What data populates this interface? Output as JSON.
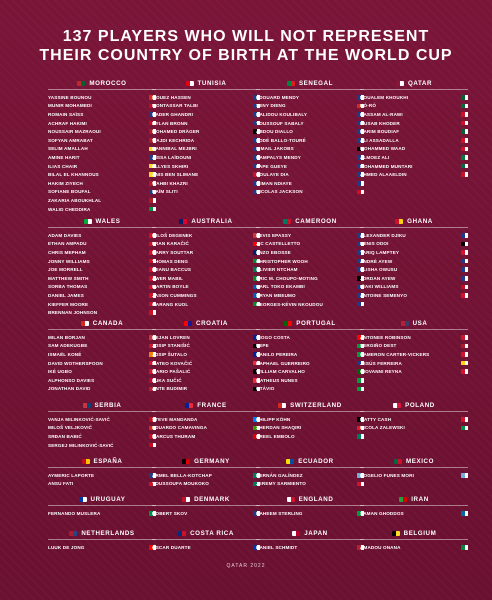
{
  "title_line1": "137 PLAYERS WHO WILL NOT REPRESENT",
  "title_line2": "THEIR COUNTRY OF BIRTH AT THE WORLD CUP",
  "footer": "QATAR 2022",
  "groups": [
    {
      "name": "MOROCCO",
      "flag": [
        "#c1272d",
        "#006233"
      ],
      "players": [
        [
          "YASSINE BOUNOU",
          "#d52b1e"
        ],
        [
          "MUNIR MOHAMEDI",
          "#c60b1e"
        ],
        [
          "ROMAIN SAÏSS",
          "#1e3a8a"
        ],
        [
          "ACHRAF HAKIMI",
          "#c60b1e"
        ],
        [
          "NOUSSAIR MAZRAOUI",
          "#ae1c28"
        ],
        [
          "SOFYAN AMRABAT",
          "#ae1c28"
        ],
        [
          "SELIM AMALLAH",
          "#fdda24"
        ],
        [
          "AMINE HARIT",
          "#1e3a8a"
        ],
        [
          "ILIAS CHAIR",
          "#fdda24"
        ],
        [
          "BILAL EL KHANNOUS",
          "#fdda24"
        ],
        [
          "HAKIM ZIYECH",
          "#ae1c28"
        ],
        [
          "SOFIANE BOUFAL",
          "#1e3a8a"
        ],
        [
          "ZAKARIA ABOUKHLAL",
          "#ae1c28"
        ],
        [
          "WALID CHEDDIRA",
          "#009246"
        ]
      ]
    },
    {
      "name": "TUNISIA",
      "flag": [
        "#e70013",
        "#ffffff"
      ],
      "players": [
        [
          "MOUEZ HASSEN",
          "#1e3a8a"
        ],
        [
          "MONTASSAR TALBI",
          "#1e3a8a"
        ],
        [
          "NADER GHANDRI",
          "#1e3a8a"
        ],
        [
          "DYLAN BRONN",
          "#1e3a8a"
        ],
        [
          "MOHAMED DRÄGER",
          "#000000"
        ],
        [
          "WAJDI KECHRIDA",
          "#1e3a8a"
        ],
        [
          "HANNIBAL MEJBRI",
          "#1e3a8a"
        ],
        [
          "AÏSSA LAÏDOUNI",
          "#1e3a8a"
        ],
        [
          "ELLYES SKHIRI",
          "#1e3a8a"
        ],
        [
          "ANIS BEN SLIMANE",
          "#c8102e"
        ],
        [
          "WAHBI KHAZRI",
          "#1e3a8a"
        ],
        [
          "NAÏM SLITI",
          "#1e3a8a"
        ]
      ]
    },
    {
      "name": "SENEGAL",
      "flag": [
        "#00853f",
        "#e31b23"
      ],
      "players": [
        [
          "ÉDOUARD MENDY",
          "#1e3a8a"
        ],
        [
          "SENY DIENG",
          "#d52b1e"
        ],
        [
          "KALIDOU KOULIBALY",
          "#1e3a8a"
        ],
        [
          "YOUSSOUF SABALY",
          "#1e3a8a"
        ],
        [
          "ABDOU DIALLO",
          "#1e3a8a"
        ],
        [
          "FODÉ BALLO-TOURÉ",
          "#1e3a8a"
        ],
        [
          "ISMAIL JAKOBS",
          "#000000"
        ],
        [
          "NAMPALYS MENDY",
          "#1e3a8a"
        ],
        [
          "PAPE GUEYE",
          "#1e3a8a"
        ],
        [
          "BOULAYE DIA",
          "#1e3a8a"
        ],
        [
          "ILIMAN NDIAYE",
          "#1e3a8a"
        ],
        [
          "NICOLAS JACKSON",
          "#ce1126"
        ]
      ]
    },
    {
      "name": "QATAR",
      "flag": [
        "#8a1538",
        "#ffffff"
      ],
      "players": [
        [
          "BOUALEM KHOUKHI",
          "#006233"
        ],
        [
          "RÓ-RÓ",
          "#046a38"
        ],
        [
          "BASSAM AL-RAWI",
          "#ce1126"
        ],
        [
          "MUSAB KHODER",
          "#ce1126"
        ],
        [
          "KARIM BOUDIAF",
          "#006233"
        ],
        [
          "ALI ASSADALLA",
          "#ce1126"
        ],
        [
          "MOHAMMED WAAD",
          "#ce1126"
        ],
        [
          "ALMOEZ ALI",
          "#007a3d"
        ],
        [
          "MOHAMMED MUNTARI",
          "#006b3f"
        ],
        [
          "AHMED ALAAELDIN",
          "#ce1126"
        ]
      ]
    },
    {
      "name": "WALES",
      "flag": [
        "#00ab39",
        "#ffffff"
      ],
      "players": [
        [
          "ADAM DAVIES",
          "#ce1124"
        ],
        [
          "ETHAN AMPADU",
          "#ce1124"
        ],
        [
          "CHRIS MEPHAM",
          "#ce1124"
        ],
        [
          "JONNY WILLIAMS",
          "#ce1124"
        ],
        [
          "JOE MORRELL",
          "#ce1124"
        ],
        [
          "MATTHEW SMITH",
          "#ce1124"
        ],
        [
          "SORBA THOMAS",
          "#ce1124"
        ],
        [
          "DANIEL JAMES",
          "#ce1124"
        ],
        [
          "KIEFFER MOORE",
          "#ce1124"
        ],
        [
          "BRENNAN JOHNSON",
          "#ce1124"
        ]
      ]
    },
    {
      "name": "AUSTRALIA",
      "flag": [
        "#012169",
        "#e4002b"
      ],
      "players": [
        [
          "MILOŠ DEGENEK",
          "#c6363c"
        ],
        [
          "FRAN KARAČIĆ",
          "#ff0000"
        ],
        [
          "HARRY SOUTTAR",
          "#012169"
        ],
        [
          "THOMAS DENG",
          "#078930"
        ],
        [
          "KEANU BACCUS",
          "#007a4d"
        ],
        [
          "AWER MABIL",
          "#078930"
        ],
        [
          "MARTIN BOYLE",
          "#005eb8"
        ],
        [
          "JASON CUMMINGS",
          "#005eb8"
        ],
        [
          "GARANG KUOL",
          "#078930"
        ]
      ]
    },
    {
      "name": "CAMEROON",
      "flag": [
        "#007a5e",
        "#ce1126"
      ],
      "players": [
        [
          "DEVIS EPASSY",
          "#1e3a8a"
        ],
        [
          "J-C CASTELLETTO",
          "#1e3a8a"
        ],
        [
          "ENZO EBOSSE",
          "#1e3a8a"
        ],
        [
          "CHRISTOPHER WOOH",
          "#1e3a8a"
        ],
        [
          "OLIVIER NTCHAM",
          "#1e3a8a"
        ],
        [
          "ERIC M. CHOUPO-MOTING",
          "#000000"
        ],
        [
          "KARL TOKO EKAMBI",
          "#1e3a8a"
        ],
        [
          "BRYAN MBEUMO",
          "#1e3a8a"
        ],
        [
          "GEORGES-KÉVIN NKOUDOU",
          "#1e3a8a"
        ]
      ]
    },
    {
      "name": "GHANA",
      "flag": [
        "#ce1126",
        "#fcd116"
      ],
      "players": [
        [
          "ALEXANDER DJIKU",
          "#1e3a8a"
        ],
        [
          "DENIS ODOI",
          "#000000"
        ],
        [
          "TARIQ LAMPTEY",
          "#cf142b"
        ],
        [
          "ANDRÉ AYEW",
          "#1e3a8a"
        ],
        [
          "ELISHA OWUSU",
          "#1e3a8a"
        ],
        [
          "JORDAN AYEW",
          "#1e3a8a"
        ],
        [
          "IÑAKI WILLIAMS",
          "#c60b1e"
        ],
        [
          "ANTOINE SEMENYO",
          "#cf142b"
        ]
      ]
    },
    {
      "name": "CANADA",
      "flag": [
        "#d52b1e",
        "#ffffff"
      ],
      "players": [
        [
          "MILAN BORJAN",
          "#c6363c"
        ],
        [
          "SAM ADEKUGBE",
          "#cf142b"
        ],
        [
          "ISMAËL KONÉ",
          "#f77f00"
        ],
        [
          "DAVID WOTHERSPOON",
          "#cf142b"
        ],
        [
          "IKÉ UGBO",
          "#cf142b"
        ],
        [
          "ALPHONSO DAVIES",
          "#bf0a30"
        ],
        [
          "JONATHAN DAVID",
          "#b22234"
        ]
      ]
    },
    {
      "name": "CROATIA",
      "flag": [
        "#ff0000",
        "#171796"
      ],
      "players": [
        [
          "DEJAN LOVREN",
          "#002395"
        ],
        [
          "JOSIP STANIŠIĆ",
          "#000000"
        ],
        [
          "JOSIP ŠUTALO",
          "#002395"
        ],
        [
          "MATEO KOVAČIĆ",
          "#ed2939"
        ],
        [
          "MARIO PAŠALIĆ",
          "#000000"
        ],
        [
          "LUKA SUČIĆ",
          "#ed2939"
        ],
        [
          "ANTE BUDIMIR",
          "#000000"
        ]
      ]
    },
    {
      "name": "PORTUGAL",
      "flag": [
        "#006600",
        "#ff0000"
      ],
      "players": [
        [
          "DIOGO COSTA",
          "#ff0000"
        ],
        [
          "PEPE",
          "#009c3b"
        ],
        [
          "DANILO PEREIRA",
          "#009c3b"
        ],
        [
          "RAPHAEL GUERREIRO",
          "#1e3a8a"
        ],
        [
          "WILLIAM CARVALHO",
          "#006600"
        ],
        [
          "MATHEUS NUNES",
          "#009c3b"
        ],
        [
          "OTÁVIO",
          "#009c3b"
        ]
      ]
    },
    {
      "name": "USA",
      "flag": [
        "#b22234",
        "#3c3b6e"
      ],
      "players": [
        [
          "ANTONEE ROBINSON",
          "#cf142b"
        ],
        [
          "SERGIÑO DEST",
          "#ae1c28"
        ],
        [
          "CAMERON CARTER-VICKERS",
          "#cf142b"
        ],
        [
          "JESÚS FERREIRA",
          "#fcd116"
        ],
        [
          "GIOVANNI REYNA",
          "#cf142b"
        ]
      ]
    },
    {
      "name": "SERBIA",
      "flag": [
        "#c6363c",
        "#0c4076"
      ],
      "players": [
        [
          "VANJA MILINKOVIĆ-SAVIĆ",
          "#c60b1e"
        ],
        [
          "MILOŠ VELJKOVIĆ",
          "#d52b1e"
        ],
        [
          "SRĐAN BABIĆ",
          "#c60b1e"
        ],
        [
          "SERGEJ MILINKOVIĆ-SAVIĆ",
          "#c60b1e"
        ]
      ]
    },
    {
      "name": "FRANCE",
      "flag": [
        "#002395",
        "#ed2939"
      ],
      "players": [
        [
          "STEVE MANDANDA",
          "#007fff"
        ],
        [
          "EDUARDO CAMAVINGA",
          "#3e9a00"
        ],
        [
          "MARCUS THURAM",
          "#dd0000"
        ]
      ]
    },
    {
      "name": "SWITZERLAND",
      "flag": [
        "#d52b1e",
        "#ffffff"
      ],
      "players": [
        [
          "PHILIPP KÖHN",
          "#000000"
        ],
        [
          "XHERDAN SHAQIRI",
          "#e41e20"
        ],
        [
          "BREEL EMBOLO",
          "#007a5e"
        ]
      ]
    },
    {
      "name": "POLAND",
      "flag": [
        "#ffffff",
        "#dc143c"
      ],
      "players": [
        [
          "MATTY CASH",
          "#cf142b"
        ],
        [
          "NICOLA ZALEWSKI",
          "#009246"
        ]
      ]
    },
    {
      "name": "ESPAÑA",
      "flag": [
        "#c60b1e",
        "#ffc400"
      ],
      "players": [
        [
          "AYMERIC LAPORTE",
          "#1e3a8a"
        ],
        [
          "ANSU FATI",
          "#ce1126"
        ]
      ]
    },
    {
      "name": "GERMANY",
      "flag": [
        "#000000",
        "#dd0000"
      ],
      "players": [
        [
          "ARMEL BELLA-KOTCHAP",
          "#007a5e"
        ],
        [
          "YOUSSOUFA MOUKOKO",
          "#007a5e"
        ]
      ]
    },
    {
      "name": "ECUADOR",
      "flag": [
        "#ffdd00",
        "#034ea2"
      ],
      "players": [
        [
          "HERNÁN GALÍNDEZ",
          "#74acdf"
        ],
        [
          "JEREMY SARMIENTO",
          "#cf142b"
        ]
      ]
    },
    {
      "name": "MEXICO",
      "flag": [
        "#006847",
        "#ce1126"
      ],
      "players": [
        [
          "ROGELIO FUNES MORI",
          "#74acdf"
        ]
      ]
    },
    {
      "name": "URUGUAY",
      "flag": [
        "#0038a8",
        "#ffffff"
      ],
      "players": [
        [
          "FERNANDO MUSLERA",
          "#009246"
        ]
      ]
    },
    {
      "name": "DENMARK",
      "flag": [
        "#c8102e",
        "#ffffff"
      ],
      "players": [
        [
          "ROBERT SKOV",
          "#1e3a8a"
        ]
      ]
    },
    {
      "name": "ENGLAND",
      "flag": [
        "#ffffff",
        "#cf142b"
      ],
      "players": [
        [
          "RAHEEM STERLING",
          "#009b3a"
        ]
      ]
    },
    {
      "name": "IRAN",
      "flag": [
        "#239f40",
        "#da0000"
      ],
      "players": [
        [
          "SAMAN GHODDOS",
          "#006aa7"
        ]
      ]
    },
    {
      "name": "NETHERLANDS",
      "flag": [
        "#ae1c28",
        "#21468b"
      ],
      "players": [
        [
          "LUUK DE JONG",
          "#ff0000"
        ]
      ]
    },
    {
      "name": "COSTA RICA",
      "flag": [
        "#002b7f",
        "#ce1126"
      ],
      "players": [
        [
          "ÓSCAR DUARTE",
          "#0038a8"
        ]
      ]
    },
    {
      "name": "JAPAN",
      "flag": [
        "#ffffff",
        "#bc002d"
      ],
      "players": [
        [
          "DANIEL SCHMIDT",
          "#b22234"
        ]
      ]
    },
    {
      "name": "BELGIUM",
      "flag": [
        "#000000",
        "#fdda24"
      ],
      "players": [
        [
          "AMADOU ONANA",
          "#00853f"
        ]
      ]
    }
  ]
}
